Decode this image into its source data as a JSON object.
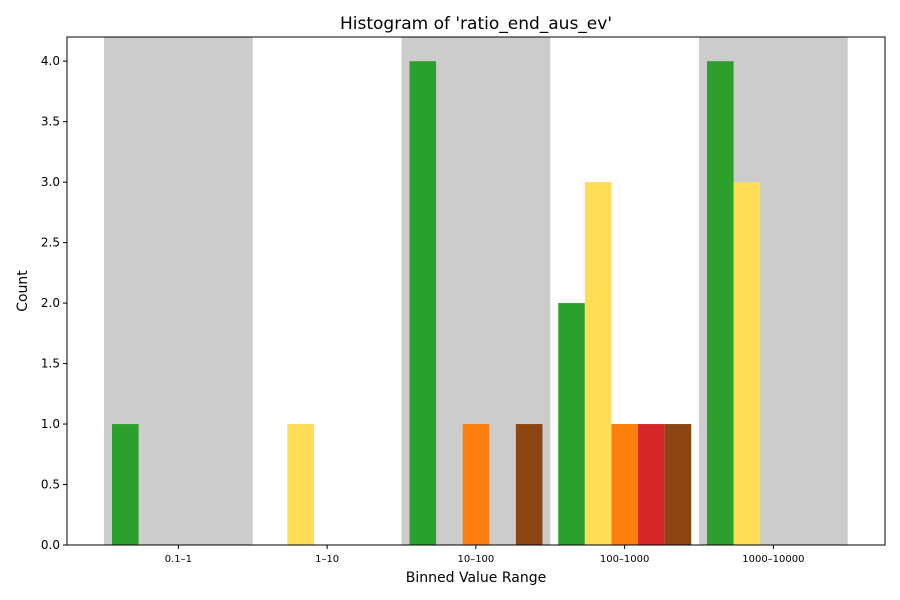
{
  "chart_data": {
    "type": "bar",
    "title": "Histogram of 'ratio_end_aus_ev'",
    "xlabel": "Binned Value Range",
    "ylabel": "Count",
    "categories": [
      "0.1–1",
      "1–10",
      "10–100",
      "100–1000",
      "1000–10000"
    ],
    "yticks": [
      "0.0",
      "0.5",
      "1.0",
      "1.5",
      "2.0",
      "2.5",
      "3.0",
      "3.5",
      "4.0"
    ],
    "ylim": [
      0,
      4.2
    ],
    "grid": false,
    "legend": "none",
    "background_bands": {
      "color": "#cccccc",
      "categories": [
        "0.1–1",
        "10–100",
        "1000–10000"
      ]
    },
    "series": [
      {
        "color": "#2ca02c",
        "values": [
          1,
          0,
          4,
          2,
          4
        ]
      },
      {
        "color": "#ffdd57",
        "values": [
          0,
          1,
          0,
          3,
          3
        ]
      },
      {
        "color": "#ff7f0e",
        "values": [
          0,
          0,
          1,
          1,
          0
        ]
      },
      {
        "color": "#d62728",
        "values": [
          0,
          0,
          0,
          1,
          0
        ]
      },
      {
        "color": "#8b4513",
        "values": [
          0,
          0,
          1,
          1,
          0
        ]
      }
    ]
  }
}
